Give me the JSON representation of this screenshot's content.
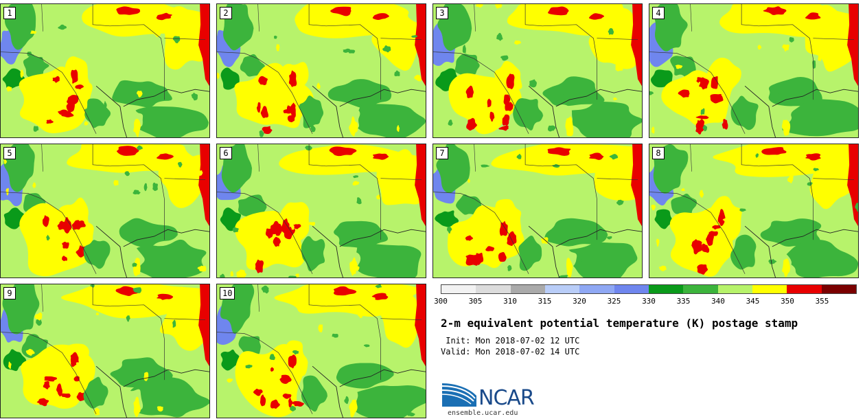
{
  "panels": [
    {
      "label": "1"
    },
    {
      "label": "2"
    },
    {
      "label": "3"
    },
    {
      "label": "4"
    },
    {
      "label": "5"
    },
    {
      "label": "6"
    },
    {
      "label": "7"
    },
    {
      "label": "8"
    },
    {
      "label": "9"
    },
    {
      "label": "10"
    }
  ],
  "colorbar": {
    "colors": [
      "#f2f2f2",
      "#dcdcdc",
      "#aaaaaa",
      "#b9cdf8",
      "#8fa8f4",
      "#6f86ee",
      "#0a9a1a",
      "#3cb43c",
      "#b7f36b",
      "#ffff00",
      "#e80000",
      "#7a0000"
    ],
    "ticks": [
      "300",
      "305",
      "310",
      "315",
      "320",
      "325",
      "330",
      "335",
      "340",
      "345",
      "350",
      "355"
    ]
  },
  "title": "2-m equivalent potential temperature (K) postage stamp",
  "init_line": " Init: Mon 2018-07-02 12 UTC",
  "valid_line": "Valid: Mon 2018-07-02 14 UTC",
  "logo": {
    "text": "NCAR",
    "website": "ensemble.ucar.edu"
  }
}
